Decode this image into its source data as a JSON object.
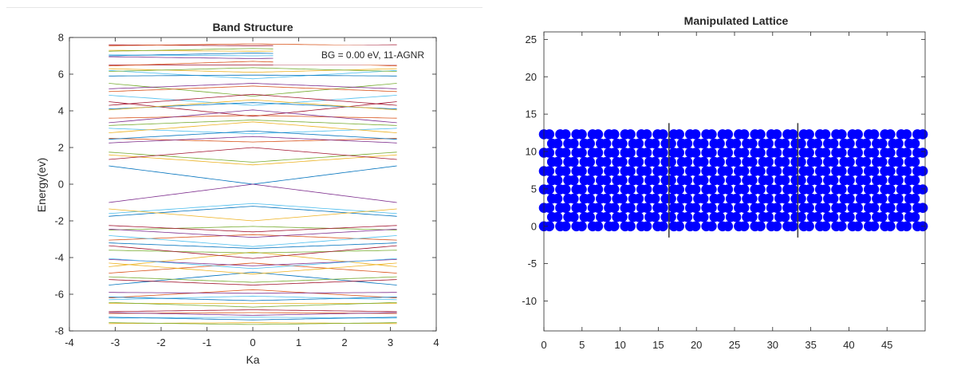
{
  "chart_data": [
    {
      "type": "line",
      "title": "Band Structure",
      "xlabel": "Ka",
      "ylabel": "Energy(ev)",
      "xlim": [
        -4,
        4
      ],
      "ylim": [
        -8,
        8
      ],
      "xticks": [
        -4,
        -3,
        -2,
        -1,
        0,
        1,
        2,
        3,
        4
      ],
      "yticks": [
        -8,
        -6,
        -4,
        -2,
        0,
        2,
        4,
        6,
        8
      ],
      "grid": false,
      "legend_position": "top-right",
      "annotation": "BG = 0.00 eV, 11-AGNR",
      "k_range": [
        -3.1416,
        3.1416
      ],
      "gap_ev": 0.0,
      "band_count_per_side": 33,
      "series_colors": [
        "#0072bd",
        "#d95319",
        "#edb120",
        "#7e2f8e",
        "#77ac30",
        "#4dbeee",
        "#a2142f"
      ],
      "series": [
        {
          "E_at_k0": 0.0,
          "E_at_kmax": 1.0
        },
        {
          "E_at_k0": 1.05,
          "E_at_kmax": 1.6
        },
        {
          "E_at_k0": 1.2,
          "E_at_kmax": 1.75
        },
        {
          "E_at_k0": 2.0,
          "E_at_kmax": 1.35
        },
        {
          "E_at_k0": 2.3,
          "E_at_kmax": 2.5
        },
        {
          "E_at_k0": 2.6,
          "E_at_kmax": 2.25
        },
        {
          "E_at_k0": 2.75,
          "E_at_kmax": 3.05
        },
        {
          "E_at_k0": 2.9,
          "E_at_kmax": 2.45
        },
        {
          "E_at_k0": 3.4,
          "E_at_kmax": 2.8
        },
        {
          "E_at_k0": 3.5,
          "E_at_kmax": 3.2
        },
        {
          "E_at_k0": 3.7,
          "E_at_kmax": 4.5
        },
        {
          "E_at_k0": 3.75,
          "E_at_kmax": 3.6
        },
        {
          "E_at_k0": 4.05,
          "E_at_kmax": 3.35
        },
        {
          "E_at_k0": 4.3,
          "E_at_kmax": 4.85
        },
        {
          "E_at_k0": 4.45,
          "E_at_kmax": 4.1
        },
        {
          "E_at_k0": 4.6,
          "E_at_kmax": 4.05
        },
        {
          "E_at_k0": 4.8,
          "E_at_kmax": 5.5
        },
        {
          "E_at_k0": 4.9,
          "E_at_kmax": 4.3
        },
        {
          "E_at_k0": 5.35,
          "E_at_kmax": 5.05
        },
        {
          "E_at_k0": 5.5,
          "E_at_kmax": 5.2
        },
        {
          "E_at_k0": 5.75,
          "E_at_kmax": 6.2
        },
        {
          "E_at_k0": 5.95,
          "E_at_kmax": 5.9
        },
        {
          "E_at_k0": 6.1,
          "E_at_kmax": 6.3
        },
        {
          "E_at_k0": 6.35,
          "E_at_kmax": 6.15
        },
        {
          "E_at_k0": 6.5,
          "E_at_kmax": 6.5
        },
        {
          "E_at_k0": 6.7,
          "E_at_kmax": 6.45
        },
        {
          "E_at_k0": 6.85,
          "E_at_kmax": 6.95
        },
        {
          "E_at_k0": 7.0,
          "E_at_kmax": 7.05
        },
        {
          "E_at_k0": 7.15,
          "E_at_kmax": 7.0
        },
        {
          "E_at_k0": 7.25,
          "E_at_kmax": 7.3
        },
        {
          "E_at_k0": 7.4,
          "E_at_kmax": 7.25
        },
        {
          "E_at_k0": 7.55,
          "E_at_kmax": 7.6
        },
        {
          "E_at_k0": 7.65,
          "E_at_kmax": 7.55
        }
      ]
    },
    {
      "type": "scatter",
      "title": "Manipulated Lattice",
      "xlim": [
        0,
        50
      ],
      "ylim": [
        -14,
        26
      ],
      "xticks": [
        0,
        5,
        10,
        15,
        20,
        25,
        30,
        35,
        40,
        45
      ],
      "yticks": [
        -10,
        -5,
        0,
        5,
        10,
        15,
        20,
        25
      ],
      "grid": false,
      "marker_color": "#0000ff",
      "lattice": {
        "rows": 11,
        "row_spacing": 1.23,
        "column_spacing": 0.71,
        "x_max": 49.7,
        "pattern_note": "armchair graphene atoms"
      },
      "separators": [
        {
          "x": 16.4,
          "y_range": [
            -1.5,
            13.8
          ]
        },
        {
          "x": 33.3,
          "y_range": [
            -1.5,
            13.8
          ]
        }
      ],
      "separator_color": "#404040"
    }
  ]
}
